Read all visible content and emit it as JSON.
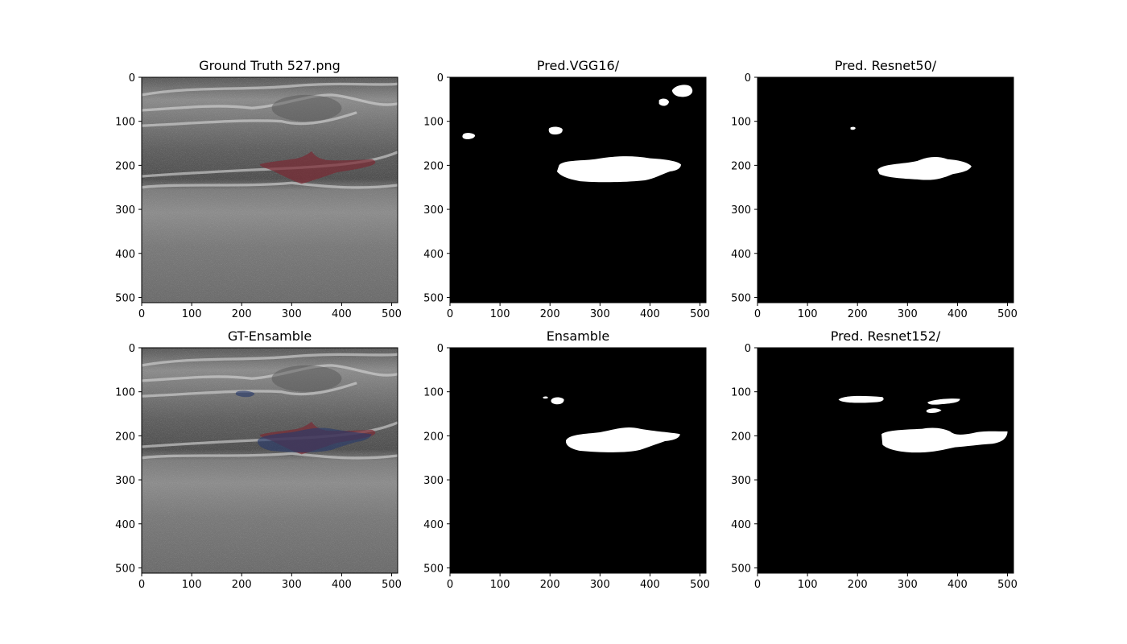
{
  "figure": {
    "panels": [
      {
        "id": "gt",
        "title": "Ground Truth 527.png",
        "kind": "ultrasound",
        "overlays": [
          "red"
        ]
      },
      {
        "id": "vgg16",
        "title": "Pred.VGG16/",
        "kind": "mask",
        "mask": "vgg"
      },
      {
        "id": "resnet50",
        "title": "Pred. Resnet50/",
        "kind": "mask",
        "mask": "r50"
      },
      {
        "id": "gt-ensemble",
        "title": "GT-Ensamble",
        "kind": "ultrasound",
        "overlays": [
          "red",
          "blue"
        ]
      },
      {
        "id": "ensemble",
        "title": "Ensamble",
        "kind": "mask",
        "mask": "ens"
      },
      {
        "id": "resnet152",
        "title": "Pred. Resnet152/",
        "kind": "mask",
        "mask": "r152"
      }
    ],
    "x_ticks": [
      0,
      100,
      200,
      300,
      400,
      500
    ],
    "y_ticks": [
      0,
      100,
      200,
      300,
      400,
      500
    ],
    "image_size": 512,
    "colors": {
      "mask_background": "#000000",
      "mask_foreground": "#ffffff",
      "ground_truth_overlay": "#7a2a33",
      "ensemble_overlay": "#2a3a6a"
    }
  }
}
